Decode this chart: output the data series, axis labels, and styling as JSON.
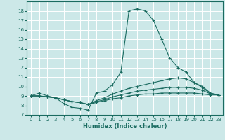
{
  "xlabel": "Humidex (Indice chaleur)",
  "bg_color": "#cce8e8",
  "grid_color": "#ffffff",
  "line_color": "#1a6b60",
  "xlim": [
    -0.5,
    23.5
  ],
  "ylim": [
    7,
    19
  ],
  "xticks": [
    0,
    1,
    2,
    3,
    4,
    5,
    6,
    7,
    8,
    9,
    10,
    11,
    12,
    13,
    14,
    15,
    16,
    17,
    18,
    19,
    20,
    21,
    22,
    23
  ],
  "yticks": [
    7,
    8,
    9,
    10,
    11,
    12,
    13,
    14,
    15,
    16,
    17,
    18
  ],
  "series": [
    {
      "x": [
        0,
        1,
        2,
        3,
        4,
        5,
        6,
        7,
        8,
        9,
        10,
        11,
        12,
        13,
        14,
        15,
        16,
        17,
        18,
        19,
        20,
        21,
        22,
        23
      ],
      "y": [
        9.0,
        9.3,
        9.0,
        8.8,
        8.2,
        7.8,
        7.7,
        7.5,
        9.3,
        9.5,
        10.2,
        11.5,
        18.0,
        18.2,
        18.0,
        17.0,
        15.0,
        13.0,
        12.0,
        11.5,
        10.4,
        9.9,
        9.2,
        9.1
      ]
    },
    {
      "x": [
        0,
        1,
        2,
        3,
        4,
        5,
        6,
        7,
        8,
        9,
        10,
        11,
        12,
        13,
        14,
        15,
        16,
        17,
        18,
        19,
        20,
        21,
        22,
        23
      ],
      "y": [
        9.0,
        9.0,
        8.9,
        8.8,
        8.6,
        8.4,
        8.3,
        8.1,
        8.5,
        8.8,
        9.2,
        9.5,
        9.8,
        10.0,
        10.2,
        10.4,
        10.6,
        10.8,
        10.9,
        10.8,
        10.4,
        10.0,
        9.3,
        9.1
      ]
    },
    {
      "x": [
        0,
        1,
        2,
        3,
        4,
        5,
        6,
        7,
        8,
        9,
        10,
        11,
        12,
        13,
        14,
        15,
        16,
        17,
        18,
        19,
        20,
        21,
        22,
        23
      ],
      "y": [
        9.0,
        9.0,
        8.9,
        8.8,
        8.6,
        8.4,
        8.3,
        8.1,
        8.4,
        8.6,
        8.9,
        9.1,
        9.3,
        9.5,
        9.6,
        9.7,
        9.8,
        9.9,
        9.9,
        9.9,
        9.8,
        9.6,
        9.2,
        9.1
      ]
    },
    {
      "x": [
        0,
        1,
        2,
        3,
        4,
        5,
        6,
        7,
        8,
        9,
        10,
        11,
        12,
        13,
        14,
        15,
        16,
        17,
        18,
        19,
        20,
        21,
        22,
        23
      ],
      "y": [
        9.0,
        9.0,
        8.9,
        8.8,
        8.6,
        8.4,
        8.3,
        8.1,
        8.3,
        8.5,
        8.7,
        8.8,
        9.0,
        9.1,
        9.2,
        9.2,
        9.3,
        9.3,
        9.3,
        9.3,
        9.3,
        9.2,
        9.1,
        9.1
      ]
    }
  ]
}
